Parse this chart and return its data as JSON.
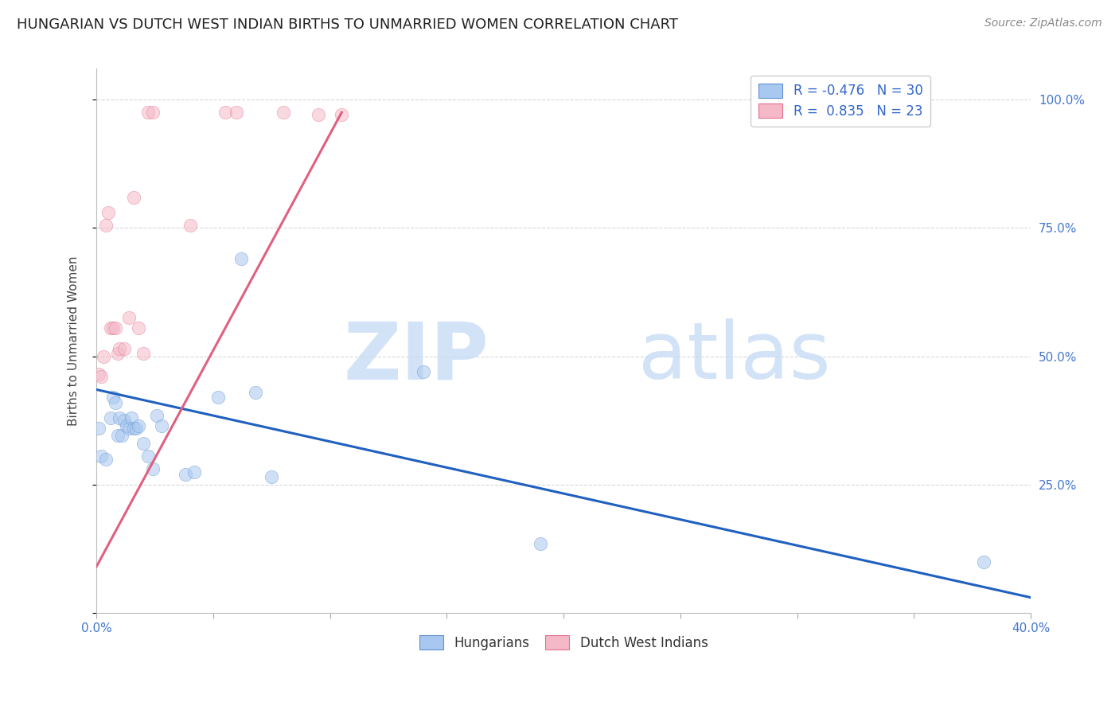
{
  "title": "HUNGARIAN VS DUTCH WEST INDIAN BIRTHS TO UNMARRIED WOMEN CORRELATION CHART",
  "source": "Source: ZipAtlas.com",
  "ylabel": "Births to Unmarried Women",
  "legend_blue_r": "R = -0.476",
  "legend_blue_n": "N = 30",
  "legend_pink_r": "R =  0.835",
  "legend_pink_n": "N = 23",
  "blue_fill_color": "#A8C8F0",
  "pink_fill_color": "#F5B8C8",
  "blue_edge_color": "#6090D0",
  "pink_edge_color": "#E07090",
  "blue_line_color": "#2060C0",
  "pink_line_color": "#E06080",
  "blue_scatter_x": [
    0.001,
    0.002,
    0.004,
    0.006,
    0.007,
    0.008,
    0.009,
    0.01,
    0.011,
    0.012,
    0.013,
    0.014,
    0.015,
    0.016,
    0.017,
    0.018,
    0.02,
    0.022,
    0.024,
    0.026,
    0.028,
    0.038,
    0.042,
    0.052,
    0.062,
    0.068,
    0.075,
    0.14,
    0.19,
    0.38
  ],
  "blue_scatter_y": [
    0.36,
    0.305,
    0.3,
    0.38,
    0.42,
    0.41,
    0.345,
    0.38,
    0.345,
    0.375,
    0.365,
    0.36,
    0.38,
    0.36,
    0.36,
    0.365,
    0.33,
    0.305,
    0.28,
    0.385,
    0.365,
    0.27,
    0.275,
    0.42,
    0.69,
    0.43,
    0.265,
    0.47,
    0.135,
    0.1
  ],
  "pink_scatter_x": [
    0.001,
    0.002,
    0.003,
    0.004,
    0.005,
    0.006,
    0.007,
    0.008,
    0.009,
    0.01,
    0.012,
    0.014,
    0.016,
    0.018,
    0.02,
    0.022,
    0.024,
    0.04,
    0.055,
    0.06,
    0.08,
    0.095,
    0.105
  ],
  "pink_scatter_y": [
    0.465,
    0.46,
    0.5,
    0.755,
    0.78,
    0.555,
    0.555,
    0.555,
    0.505,
    0.515,
    0.515,
    0.575,
    0.81,
    0.555,
    0.505,
    0.975,
    0.975,
    0.755,
    0.975,
    0.975,
    0.975,
    0.97,
    0.97
  ],
  "blue_line_x": [
    0.0,
    0.4
  ],
  "blue_line_y": [
    0.435,
    0.03
  ],
  "pink_line_x": [
    0.0,
    0.105
  ],
  "pink_line_y": [
    0.09,
    0.975
  ],
  "xmin": 0.0,
  "xmax": 0.4,
  "ymin": 0.0,
  "ymax": 1.06,
  "xtick_positions": [
    0.0,
    0.05,
    0.1,
    0.15,
    0.2,
    0.25,
    0.3,
    0.35,
    0.4
  ],
  "ytick_positions": [
    0.0,
    0.25,
    0.5,
    0.75,
    1.0
  ],
  "right_yticklabels": [
    "",
    "25.0%",
    "50.0%",
    "75.0%",
    "100.0%"
  ],
  "grid_color": "#D8D8D8",
  "background_color": "#FFFFFF",
  "title_fontsize": 13,
  "source_fontsize": 10,
  "scatter_size": 140,
  "scatter_alpha": 0.55,
  "scatter_linewidth": 0.5
}
